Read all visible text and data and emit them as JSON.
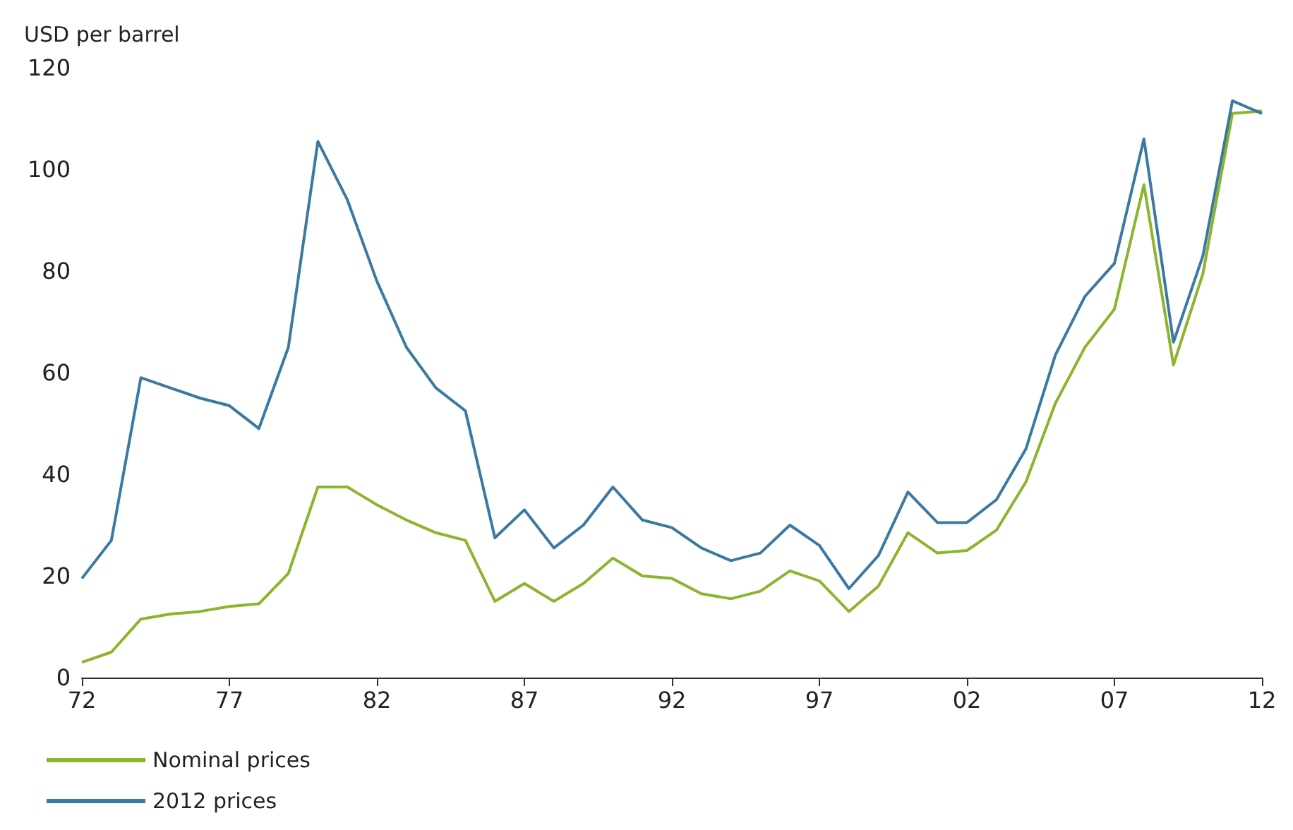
{
  "chart_data": {
    "type": "line",
    "ylabel": "USD per barrel",
    "categories": [
      "72",
      null,
      null,
      null,
      null,
      "77",
      null,
      null,
      null,
      null,
      "82",
      null,
      null,
      null,
      null,
      "87",
      null,
      null,
      null,
      null,
      "92",
      null,
      null,
      null,
      null,
      "97",
      null,
      null,
      null,
      null,
      "02",
      null,
      null,
      null,
      null,
      "07",
      null,
      null,
      null,
      null,
      "12"
    ],
    "series": [
      {
        "name": "Nominal prices",
        "color": "#8cb42c",
        "values": [
          3,
          5,
          11.5,
          12.5,
          13,
          14,
          14.5,
          20.5,
          37.5,
          37.5,
          34,
          31,
          28.5,
          27,
          15,
          18.5,
          15,
          18.5,
          23.5,
          20,
          19.5,
          16.5,
          15.5,
          17,
          21,
          19,
          13,
          18,
          28.5,
          24.5,
          25,
          29,
          38.5,
          54,
          65,
          72.5,
          97,
          61.5,
          79.5,
          111,
          111.5
        ]
      },
      {
        "name": "2012 prices",
        "color": "#3a79a3",
        "values": [
          19.5,
          27,
          59,
          57,
          55,
          53.5,
          49,
          65,
          105.5,
          94,
          78,
          65,
          57,
          52.5,
          27.5,
          33,
          25.5,
          30,
          37.5,
          31,
          29.5,
          25.5,
          23,
          24.5,
          30,
          26,
          17.5,
          24,
          36.5,
          30.5,
          30.5,
          35,
          45,
          63.5,
          75,
          81.5,
          106,
          66,
          83,
          113.5,
          111
        ]
      }
    ],
    "ylim": [
      0,
      120
    ],
    "yticks": [
      0,
      20,
      40,
      60,
      80,
      100,
      120
    ],
    "grid": false,
    "legend": "bottom left",
    "marker": "none",
    "line_style": "solid"
  }
}
